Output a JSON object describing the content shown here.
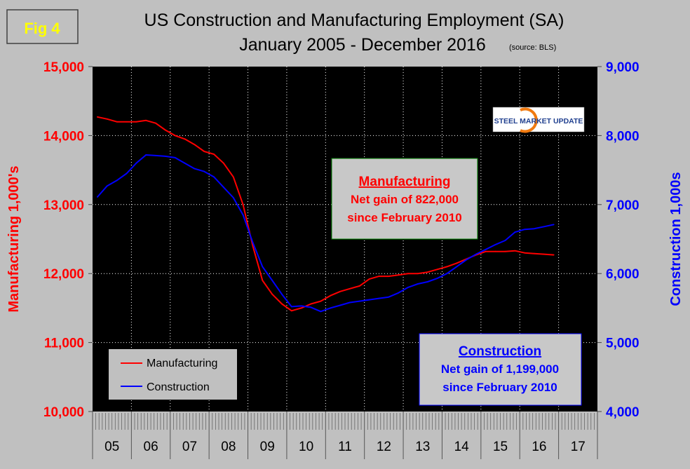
{
  "figure_label": "Fig 4",
  "logo_text": "STEEL MARKET UPDATE",
  "chart_data": {
    "type": "line",
    "title": "US Construction and Manufacturing Employment (SA)",
    "subtitle": "January 2005 - December 2016",
    "source": "(source: BLS)",
    "ylabel_left": "Manufacturing  1,000's",
    "ylabel_right": "Construction 1,000s",
    "ylim_left": [
      10000,
      15000
    ],
    "ylim_right": [
      4000,
      9000
    ],
    "yticks_left": [
      "10,000",
      "11,000",
      "12,000",
      "13,000",
      "14,000",
      "15,000"
    ],
    "yticks_right": [
      "4,000",
      "5,000",
      "6,000",
      "7,000",
      "8,000",
      "9,000"
    ],
    "xticks": [
      "05",
      "06",
      "07",
      "08",
      "09",
      "10",
      "11",
      "12",
      "13",
      "14",
      "15",
      "16",
      "17"
    ],
    "x_unit": "quarter (2005 Q1 - 2016 Q4)",
    "grid": true,
    "legend_position": "bottom-left",
    "series": [
      {
        "name": "Manufacturing",
        "axis": "left",
        "color": "#ff0000",
        "values": [
          14270,
          14240,
          14200,
          14200,
          14200,
          14220,
          14180,
          14080,
          14000,
          13950,
          13870,
          13770,
          13730,
          13600,
          13400,
          13000,
          12400,
          11900,
          11700,
          11560,
          11460,
          11500,
          11560,
          11600,
          11680,
          11740,
          11780,
          11820,
          11920,
          11960,
          11960,
          11980,
          12000,
          12000,
          12020,
          12060,
          12100,
          12150,
          12210,
          12270,
          12320,
          12320,
          12320,
          12330,
          12300,
          12290,
          12280,
          12270
        ]
      },
      {
        "name": "Construction",
        "axis": "right",
        "color": "#0000ff",
        "values": [
          7110,
          7270,
          7350,
          7450,
          7600,
          7720,
          7710,
          7700,
          7680,
          7600,
          7520,
          7480,
          7400,
          7250,
          7100,
          6850,
          6450,
          6100,
          5900,
          5700,
          5520,
          5530,
          5510,
          5450,
          5500,
          5540,
          5580,
          5600,
          5620,
          5640,
          5660,
          5720,
          5800,
          5850,
          5880,
          5930,
          6000,
          6100,
          6200,
          6280,
          6350,
          6420,
          6480,
          6600,
          6640,
          6650,
          6680,
          6710
        ]
      }
    ],
    "annotations": [
      {
        "title": "Manufacturing",
        "line1": "Net gain of 822,000",
        "line2": "since February 2010",
        "color": "#ff0000"
      },
      {
        "title": "Construction",
        "line1": "Net gain of 1,199,000",
        "line2": "since February 2010",
        "color": "#0000ff"
      }
    ]
  }
}
